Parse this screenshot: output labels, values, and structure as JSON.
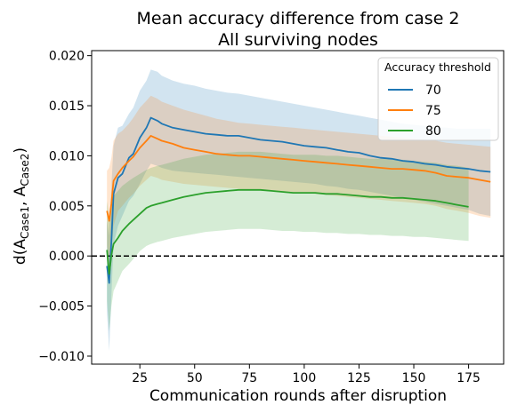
{
  "chart_data": {
    "type": "line",
    "title": "Mean accuracy difference from case 2",
    "subtitle": "All surviving nodes",
    "xlabel": "Communication rounds after disruption",
    "ylabel": "d(A_Case1, A_Case2)",
    "xlim": [
      3,
      191
    ],
    "ylim": [
      -0.0108,
      0.0205
    ],
    "x_ticks": [
      "25",
      "50",
      "75",
      "100",
      "125",
      "150",
      "175"
    ],
    "x_tick_values": [
      25,
      50,
      75,
      100,
      125,
      150,
      175
    ],
    "y_ticks": [
      "−0.010",
      "−0.005",
      "0.000",
      "0.005",
      "0.010",
      "0.015",
      "0.020"
    ],
    "y_tick_values": [
      -0.01,
      -0.005,
      0,
      0.005,
      0.01,
      0.015,
      0.02
    ],
    "reference_line": {
      "y": 0,
      "style": "dashed",
      "color": "#000000"
    },
    "grid": false,
    "legend": {
      "title": "Accuracy threshold",
      "position": "top-right"
    },
    "series": [
      {
        "name": "70",
        "color": "#1f77b4",
        "x": [
          10,
          11,
          12,
          13,
          15,
          17,
          20,
          22,
          25,
          28,
          30,
          33,
          35,
          40,
          45,
          50,
          55,
          60,
          65,
          70,
          75,
          80,
          85,
          90,
          95,
          100,
          105,
          110,
          115,
          120,
          125,
          130,
          135,
          140,
          145,
          150,
          155,
          160,
          165,
          170,
          175,
          180,
          185
        ],
        "y": [
          -0.001,
          -0.0027,
          0.0015,
          0.0062,
          0.0078,
          0.0082,
          0.0098,
          0.0102,
          0.0118,
          0.0128,
          0.0138,
          0.0135,
          0.0132,
          0.0128,
          0.0126,
          0.0124,
          0.0122,
          0.0121,
          0.012,
          0.012,
          0.0118,
          0.0116,
          0.0115,
          0.0114,
          0.0112,
          0.011,
          0.0109,
          0.0108,
          0.0106,
          0.0104,
          0.0103,
          0.01,
          0.0098,
          0.0097,
          0.0095,
          0.0094,
          0.0092,
          0.0091,
          0.0089,
          0.0088,
          0.0087,
          0.0085,
          0.0084
        ],
        "band_lower": [
          -0.0055,
          -0.0095,
          -0.004,
          0.0012,
          0.003,
          0.004,
          0.0055,
          0.006,
          0.0072,
          0.0085,
          0.0092,
          0.009,
          0.0088,
          0.0085,
          0.0084,
          0.0083,
          0.0082,
          0.0081,
          0.008,
          0.0079,
          0.0078,
          0.0077,
          0.0076,
          0.0075,
          0.0074,
          0.0073,
          0.0072,
          0.007,
          0.0069,
          0.0067,
          0.0066,
          0.0064,
          0.0062,
          0.006,
          0.0058,
          0.0056,
          0.0054,
          0.0052,
          0.005,
          0.0048,
          0.0046,
          0.0042,
          0.004
        ],
        "band_upper": [
          0.0035,
          0.002,
          0.007,
          0.011,
          0.0128,
          0.013,
          0.0142,
          0.0148,
          0.0165,
          0.0175,
          0.0186,
          0.0184,
          0.018,
          0.0175,
          0.0172,
          0.017,
          0.0167,
          0.0165,
          0.0163,
          0.0162,
          0.016,
          0.0158,
          0.0156,
          0.0154,
          0.0152,
          0.015,
          0.0148,
          0.0146,
          0.0144,
          0.0142,
          0.014,
          0.0138,
          0.0136,
          0.0134,
          0.0132,
          0.0131,
          0.013,
          0.0129,
          0.0128,
          0.0127,
          0.0127,
          0.0127,
          0.0127
        ]
      },
      {
        "name": "75",
        "color": "#ff7f0e",
        "x": [
          10,
          11,
          12,
          13,
          15,
          17,
          20,
          22,
          25,
          28,
          30,
          33,
          35,
          40,
          45,
          50,
          55,
          60,
          65,
          70,
          75,
          80,
          85,
          90,
          95,
          100,
          105,
          110,
          115,
          120,
          125,
          130,
          135,
          140,
          145,
          150,
          155,
          160,
          165,
          170,
          175,
          180,
          185
        ],
        "y": [
          0.0045,
          0.0035,
          0.0052,
          0.0075,
          0.0082,
          0.0088,
          0.0095,
          0.0099,
          0.0108,
          0.0115,
          0.012,
          0.0117,
          0.0115,
          0.0112,
          0.0108,
          0.0106,
          0.0104,
          0.0102,
          0.0101,
          0.01,
          0.01,
          0.0099,
          0.0098,
          0.0097,
          0.0096,
          0.0095,
          0.0094,
          0.0093,
          0.0092,
          0.0091,
          0.009,
          0.0089,
          0.0088,
          0.0087,
          0.0087,
          0.0086,
          0.0085,
          0.0083,
          0.008,
          0.0079,
          0.0078,
          0.0076,
          0.0074
        ],
        "band_lower": [
          0.001,
          -0.001,
          0.0005,
          0.003,
          0.0045,
          0.005,
          0.0058,
          0.0062,
          0.007,
          0.0076,
          0.008,
          0.0078,
          0.0076,
          0.0074,
          0.0072,
          0.0071,
          0.007,
          0.0069,
          0.0068,
          0.0067,
          0.0066,
          0.0066,
          0.0065,
          0.0064,
          0.0063,
          0.0063,
          0.0062,
          0.0061,
          0.006,
          0.0059,
          0.0058,
          0.0057,
          0.0056,
          0.0055,
          0.0054,
          0.0053,
          0.0052,
          0.005,
          0.0047,
          0.0045,
          0.0043,
          0.004,
          0.0038
        ],
        "band_upper": [
          0.0085,
          0.0088,
          0.0098,
          0.0115,
          0.0122,
          0.0125,
          0.0132,
          0.0138,
          0.0148,
          0.0155,
          0.016,
          0.0157,
          0.0154,
          0.015,
          0.0146,
          0.0143,
          0.014,
          0.0137,
          0.0135,
          0.0133,
          0.0132,
          0.0131,
          0.013,
          0.0129,
          0.0128,
          0.0127,
          0.0126,
          0.0125,
          0.0124,
          0.0123,
          0.0122,
          0.0121,
          0.012,
          0.0119,
          0.0118,
          0.0117,
          0.0116,
          0.0115,
          0.0113,
          0.0112,
          0.0111,
          0.011,
          0.0109
        ]
      },
      {
        "name": "80",
        "color": "#2ca02c",
        "x": [
          10,
          11,
          12,
          13,
          15,
          17,
          20,
          22,
          25,
          28,
          30,
          33,
          35,
          40,
          45,
          50,
          55,
          60,
          65,
          70,
          75,
          80,
          85,
          90,
          95,
          100,
          105,
          110,
          115,
          120,
          125,
          130,
          135,
          140,
          145,
          150,
          155,
          160,
          165,
          170,
          175
        ],
        "y": [
          0.0006,
          -0.0018,
          0.0001,
          0.0012,
          0.0018,
          0.0025,
          0.0032,
          0.0036,
          0.0042,
          0.0048,
          0.005,
          0.0052,
          0.0053,
          0.0056,
          0.0059,
          0.0061,
          0.0063,
          0.0064,
          0.0065,
          0.0066,
          0.0066,
          0.0066,
          0.0065,
          0.0064,
          0.0063,
          0.0063,
          0.0063,
          0.0062,
          0.0062,
          0.0061,
          0.006,
          0.0059,
          0.0059,
          0.0058,
          0.0058,
          0.0057,
          0.0056,
          0.0055,
          0.0053,
          0.0051,
          0.0049
        ],
        "band_lower": [
          -0.0045,
          -0.0075,
          -0.005,
          -0.0035,
          -0.0025,
          -0.0015,
          -0.0008,
          -0.0003,
          0.0005,
          0.001,
          0.0012,
          0.0014,
          0.0015,
          0.0018,
          0.002,
          0.0022,
          0.0024,
          0.0025,
          0.0026,
          0.0027,
          0.0027,
          0.0027,
          0.0026,
          0.0025,
          0.0025,
          0.0024,
          0.0024,
          0.0023,
          0.0023,
          0.0022,
          0.0022,
          0.0021,
          0.0021,
          0.002,
          0.002,
          0.0019,
          0.0019,
          0.0018,
          0.0017,
          0.0016,
          0.0015
        ],
        "band_upper": [
          0.0055,
          0.0038,
          0.005,
          0.006,
          0.0065,
          0.007,
          0.0075,
          0.0078,
          0.0082,
          0.0086,
          0.0088,
          0.009,
          0.0091,
          0.0094,
          0.0097,
          0.0099,
          0.0101,
          0.0102,
          0.0103,
          0.0104,
          0.0104,
          0.0104,
          0.0103,
          0.0102,
          0.0101,
          0.0101,
          0.0101,
          0.01,
          0.01,
          0.0099,
          0.0098,
          0.0097,
          0.0097,
          0.0096,
          0.0096,
          0.0095,
          0.0094,
          0.0093,
          0.0091,
          0.009,
          0.0088
        ]
      }
    ]
  }
}
